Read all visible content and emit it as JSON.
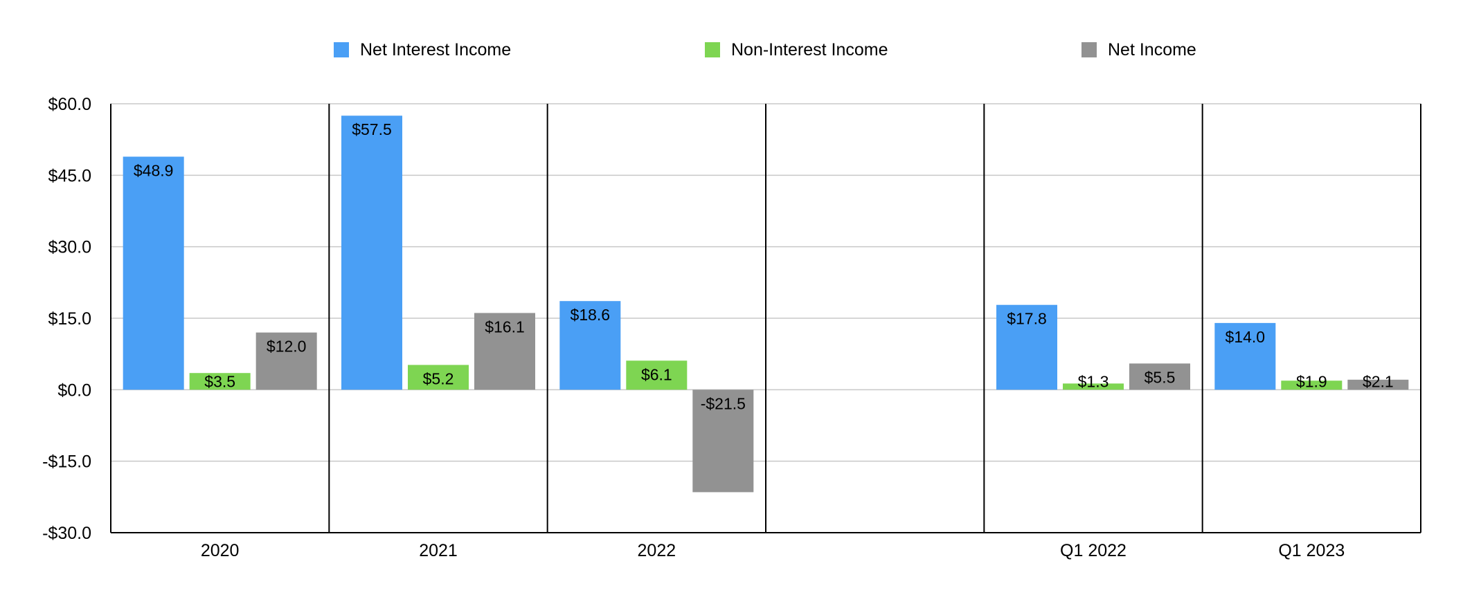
{
  "chart_data": {
    "type": "bar",
    "title": "",
    "xlabel": "",
    "ylabel": "",
    "categories": [
      "2020",
      "2021",
      "2022",
      "",
      "Q1 2022",
      "Q1 2023"
    ],
    "series": [
      {
        "name": "Net Interest Income",
        "color": "#4A9FF5",
        "values": [
          48.9,
          57.5,
          18.6,
          null,
          17.8,
          14.0
        ],
        "labels": [
          "$48.9",
          "$57.5",
          "$18.6",
          null,
          "$17.8",
          "$14.0"
        ]
      },
      {
        "name": "Non-Interest Income",
        "color": "#7ED552",
        "values": [
          3.5,
          5.2,
          6.1,
          null,
          1.3,
          1.9
        ],
        "labels": [
          "$3.5",
          "$5.2",
          "$6.1",
          null,
          "$1.3",
          "$1.9"
        ]
      },
      {
        "name": "Net Income",
        "color": "#929292",
        "values": [
          12.0,
          16.1,
          -21.5,
          null,
          5.5,
          2.1
        ],
        "labels": [
          "$12.0",
          "$16.1",
          "-$21.5",
          null,
          "$5.5",
          "$2.1"
        ]
      }
    ],
    "ylim": [
      -30,
      60
    ],
    "yticks": [
      60,
      45,
      30,
      15,
      0,
      -15,
      -30
    ],
    "ytick_labels": [
      "$60.0",
      "$45.0",
      "$30.0",
      "$15.0",
      "$0.0",
      "-$15.0",
      "-$30.0"
    ],
    "grid": true,
    "legend": "top-center"
  }
}
